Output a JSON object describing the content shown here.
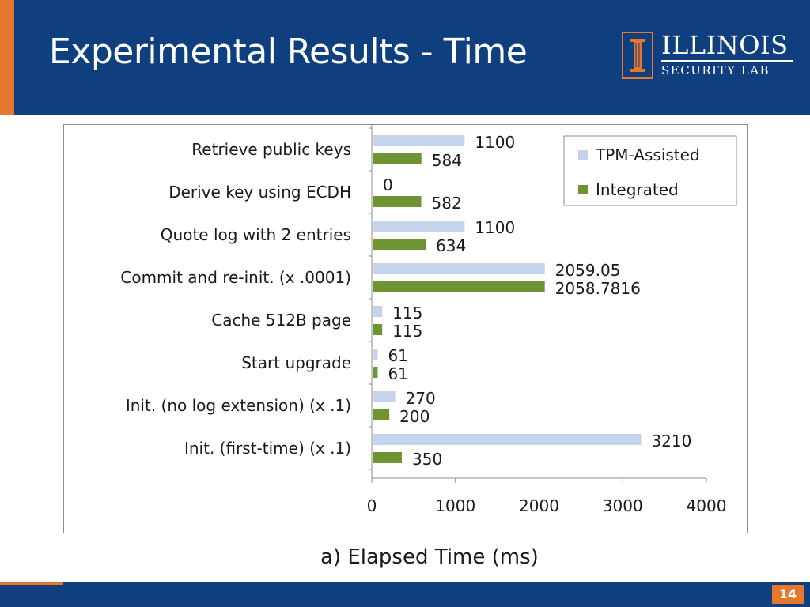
{
  "slide": {
    "title": "Experimental Results - Time",
    "page_number": "14"
  },
  "logo": {
    "name": "ILLINOIS",
    "subtitle": "SECURITY LAB",
    "icon": "column-pillar-icon"
  },
  "colors": {
    "header": "#0f3f7f",
    "accent": "#e8772e",
    "tpm": "#c5d4ec",
    "integrated": "#6e9433"
  },
  "chart_data": {
    "type": "bar",
    "orientation": "horizontal",
    "caption": "a) Elapsed Time (ms)",
    "categories": [
      "Retrieve public keys",
      "Derive key using ECDH",
      "Quote log with 2 entries",
      "Commit and re-init. (x .0001)",
      "Cache 512B page",
      "Start upgrade",
      "Init. (no log extension)  (x .1)",
      "Init. (first-time) (x .1)"
    ],
    "series": [
      {
        "name": "TPM-Assisted",
        "values": [
          1100,
          0,
          1100,
          2059.05,
          115,
          61,
          270,
          3210
        ],
        "labels": [
          "1100",
          "0",
          "1100",
          "2059.05",
          "115",
          "61",
          "270",
          "3210"
        ]
      },
      {
        "name": "Integrated",
        "values": [
          584,
          582,
          634,
          2058.7816,
          115,
          61,
          200,
          350
        ],
        "labels": [
          "584",
          "582",
          "634",
          "2058.7816",
          "115",
          "61",
          "200",
          "350"
        ]
      }
    ],
    "xlim": [
      0,
      4000
    ],
    "xticks": [
      "0",
      "1000",
      "2000",
      "3000",
      "4000"
    ],
    "legend_position": "top-right",
    "grid": false
  }
}
